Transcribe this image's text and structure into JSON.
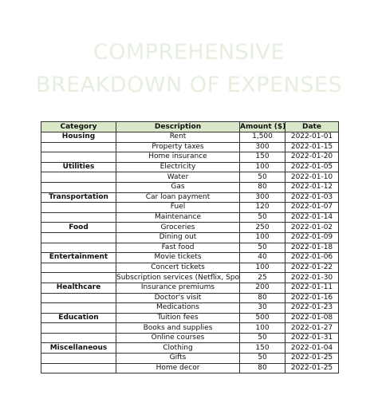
{
  "title": {
    "line1": "COMPREHENSIVE",
    "line2": "BREAKDOWN OF EXPENSES"
  },
  "table": {
    "headers": [
      "Category",
      "Description",
      "Amount ($)",
      "Date"
    ],
    "rows": [
      {
        "category": "Housing",
        "description": "Rent",
        "amount": "1,500",
        "date": "2022-01-01"
      },
      {
        "category": "",
        "description": "Property taxes",
        "amount": "300",
        "date": "2022-01-15"
      },
      {
        "category": "",
        "description": "Home insurance",
        "amount": "150",
        "date": "2022-01-20"
      },
      {
        "category": "Utilities",
        "description": "Electricity",
        "amount": "100",
        "date": "2022-01-05"
      },
      {
        "category": "",
        "description": "Water",
        "amount": "50",
        "date": "2022-01-10"
      },
      {
        "category": "",
        "description": "Gas",
        "amount": "80",
        "date": "2022-01-12"
      },
      {
        "category": "Transportation",
        "description": "Car loan payment",
        "amount": "300",
        "date": "2022-01-03"
      },
      {
        "category": "",
        "description": "Fuel",
        "amount": "120",
        "date": "2022-01-07"
      },
      {
        "category": "",
        "description": "Maintenance",
        "amount": "50",
        "date": "2022-01-14"
      },
      {
        "category": "Food",
        "description": "Groceries",
        "amount": "250",
        "date": "2022-01-02"
      },
      {
        "category": "",
        "description": "Dining out",
        "amount": "100",
        "date": "2022-01-09"
      },
      {
        "category": "",
        "description": "Fast food",
        "amount": "50",
        "date": "2022-01-18"
      },
      {
        "category": "Entertainment",
        "description": "Movie tickets",
        "amount": "40",
        "date": "2022-01-06"
      },
      {
        "category": "",
        "description": "Concert tickets",
        "amount": "100",
        "date": "2022-01-22"
      },
      {
        "category": "",
        "description": "Subscription services (Netflix, Spotify)",
        "amount": "25",
        "date": "2022-01-30"
      },
      {
        "category": "Healthcare",
        "description": "Insurance premiums",
        "amount": "200",
        "date": "2022-01-11"
      },
      {
        "category": "",
        "description": "Doctor's visit",
        "amount": "80",
        "date": "2022-01-16"
      },
      {
        "category": "",
        "description": "Medications",
        "amount": "30",
        "date": "2022-01-23"
      },
      {
        "category": "Education",
        "description": "Tuition fees",
        "amount": "500",
        "date": "2022-01-08"
      },
      {
        "category": "",
        "description": "Books and supplies",
        "amount": "100",
        "date": "2022-01-27"
      },
      {
        "category": "",
        "description": "Online courses",
        "amount": "50",
        "date": "2022-01-31"
      },
      {
        "category": "Miscellaneous",
        "description": "Clothing",
        "amount": "150",
        "date": "2022-01-04"
      },
      {
        "category": "",
        "description": "Gifts",
        "amount": "50",
        "date": "2022-01-25"
      },
      {
        "category": "",
        "description": "Home decor",
        "amount": "80",
        "date": "2022-01-25"
      }
    ]
  },
  "colors": {
    "header_fill": "#d8e8c8",
    "title_color": "#e6efdf",
    "border": "#333333"
  }
}
